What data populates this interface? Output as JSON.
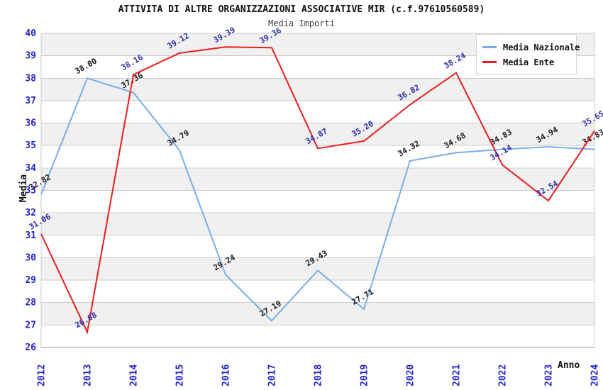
{
  "title": "ATTIVITA DI ALTRE ORGANIZZAZIONI ASSOCIATIVE MIR (c.f.97610560589)",
  "subtitle": "Media Importi",
  "chart_data": {
    "type": "line",
    "x": [
      2012,
      2013,
      2014,
      2015,
      2016,
      2017,
      2018,
      2019,
      2020,
      2021,
      2022,
      2023,
      2024
    ],
    "series": [
      {
        "name": "Media Nazionale",
        "color": "#79ade6",
        "label_color": "#1a1a1a",
        "values": [
          32.82,
          38.0,
          37.36,
          34.79,
          29.24,
          27.19,
          29.43,
          27.71,
          34.32,
          34.68,
          34.83,
          34.94,
          34.83
        ]
      },
      {
        "name": "Media Ente",
        "color": "#ee1c1c",
        "label_color": "#2b2ba8",
        "values": [
          31.06,
          26.68,
          38.16,
          39.12,
          39.39,
          39.36,
          34.87,
          35.2,
          36.82,
          38.24,
          34.14,
          32.54,
          35.65
        ]
      }
    ],
    "title": "ATTIVITA DI ALTRE ORGANIZZAZIONI ASSOCIATIVE MIR (c.f.97610560589)",
    "subtitle": "Media Importi",
    "xlabel": "Anno",
    "ylabel": "Media",
    "ylim": [
      26,
      40
    ],
    "y_tick_step": 1,
    "grid": "horizontal",
    "legend_position": "top-right",
    "style": {
      "band_fill": "#f0f0f0",
      "gridline_color": "#cccccc",
      "axis_line_color": "#999999",
      "plot_border_color": "#cccccc",
      "tick_label_color": "#2323cf",
      "data_label_rotation_deg": -30
    }
  }
}
